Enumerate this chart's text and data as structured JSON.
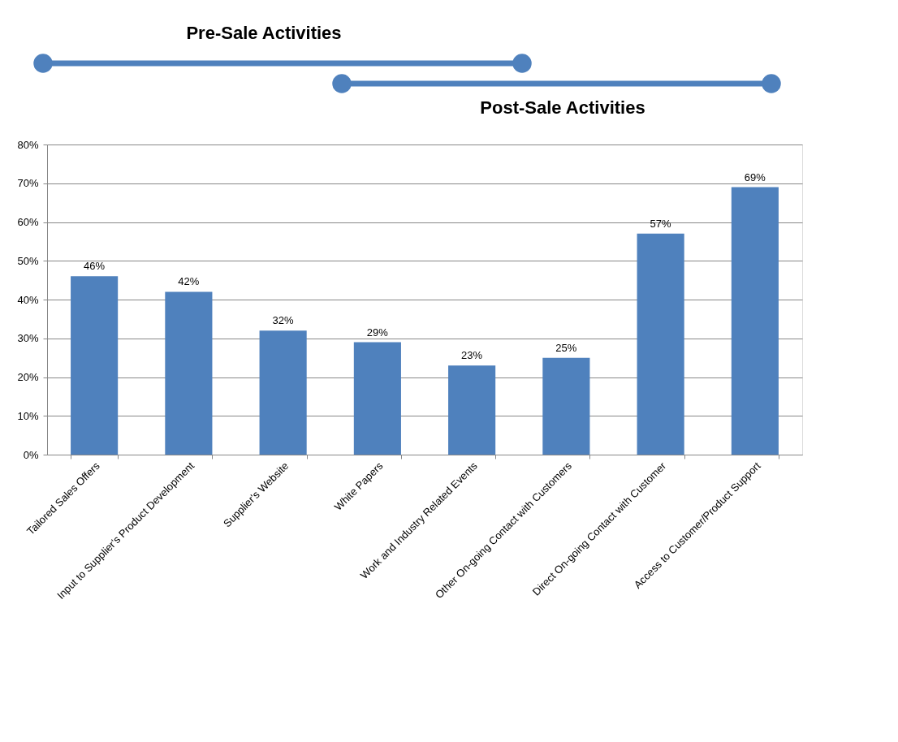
{
  "chart_data": {
    "type": "bar",
    "categories": [
      "Tailored Sales Offers",
      "Input to Supplier's Product Development",
      "Supplier's Website",
      "White Papers",
      "Work and Industry Related Events",
      "Other On-going Contact with Customers",
      "Direct On-going Contact with Customer",
      "Access to Customer/Product Support"
    ],
    "values": [
      46,
      42,
      32,
      29,
      23,
      25,
      57,
      69
    ],
    "value_labels": [
      "46%",
      "42%",
      "32%",
      "29%",
      "23%",
      "25%",
      "57%",
      "69%"
    ],
    "color": "#4f81bd",
    "ylim": [
      0,
      80
    ],
    "yticks": [
      {
        "value": 0,
        "label": "0%"
      },
      {
        "value": 10,
        "label": "10%"
      },
      {
        "value": 20,
        "label": "20%"
      },
      {
        "value": 30,
        "label": "30%"
      },
      {
        "value": 40,
        "label": "40%"
      },
      {
        "value": 50,
        "label": "50%"
      },
      {
        "value": 60,
        "label": "60%"
      },
      {
        "value": 70,
        "label": "70%"
      },
      {
        "value": 80,
        "label": "80%"
      }
    ],
    "grid": "y",
    "annotations": [
      "Pre-Sale Activities",
      "Post-Sale Activities"
    ]
  }
}
